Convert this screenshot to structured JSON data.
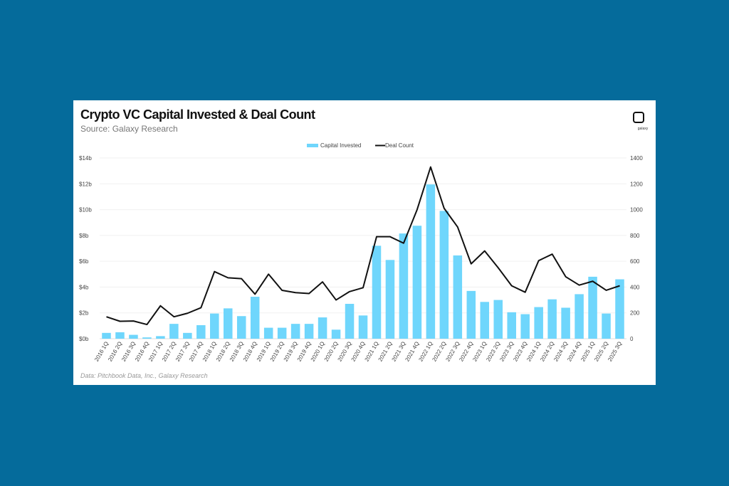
{
  "chart_data": {
    "type": "bar",
    "title": "Crypto VC Capital Invested & Deal Count",
    "subtitle": "Source: Galaxy Research",
    "footer": "Data: Pitchbook Data, Inc., Galaxy Research",
    "logo_text": "galaxy",
    "legend_placement": "top-center",
    "grid": true,
    "categories": [
      "2016 1Q",
      "2016 2Q",
      "2016 3Q",
      "2016 4Q",
      "2017 1Q",
      "2017 2Q",
      "2017 3Q",
      "2017 4Q",
      "2018 1Q",
      "2018 2Q",
      "2018 3Q",
      "2018 4Q",
      "2019 1Q",
      "2019 2Q",
      "2019 3Q",
      "2019 4Q",
      "2020 1Q",
      "2020 2Q",
      "2020 3Q",
      "2020 4Q",
      "2021 1Q",
      "2021 2Q",
      "2021 3Q",
      "2021 4Q",
      "2022 1Q",
      "2022 2Q",
      "2022 3Q",
      "2022 4Q",
      "2023 1Q",
      "2023 2Q",
      "2023 3Q",
      "2023 4Q",
      "2024 1Q",
      "2024 2Q",
      "2024 3Q",
      "2024 4Q",
      "2025 1Q",
      "2025 2Q",
      "2025 3Q"
    ],
    "left_axis": {
      "ticks": [
        "$0b",
        "$2b",
        "$4b",
        "$6b",
        "$8b",
        "$10b",
        "$12b",
        "$14b"
      ],
      "range": [
        0,
        14
      ],
      "unit": "$b"
    },
    "right_axis": {
      "ticks": [
        "0",
        "200",
        "400",
        "600",
        "800",
        "1000",
        "1200",
        "1400"
      ],
      "range": [
        0,
        1400
      ]
    },
    "series": [
      {
        "name": "Capital Invested",
        "type": "bar",
        "axis": "left",
        "color": "#6fd6fc",
        "values": [
          0.45,
          0.5,
          0.3,
          0.1,
          0.2,
          1.15,
          0.45,
          1.05,
          1.95,
          2.35,
          1.75,
          3.25,
          0.85,
          0.85,
          1.15,
          1.15,
          1.65,
          0.7,
          2.7,
          1.8,
          7.2,
          6.1,
          8.15,
          8.75,
          11.95,
          9.9,
          6.45,
          3.7,
          2.85,
          3.0,
          2.05,
          1.9,
          2.45,
          3.05,
          2.4,
          3.45,
          4.8,
          1.95,
          4.6
        ]
      },
      {
        "name": "Deal Count",
        "type": "line",
        "axis": "right",
        "color": "#111111",
        "values": [
          170,
          135,
          137,
          110,
          255,
          170,
          197,
          240,
          520,
          472,
          465,
          345,
          500,
          375,
          357,
          350,
          440,
          300,
          365,
          395,
          790,
          790,
          740,
          1000,
          1330,
          1010,
          865,
          580,
          680,
          550,
          410,
          360,
          605,
          655,
          480,
          415,
          445,
          375,
          410
        ]
      }
    ]
  }
}
